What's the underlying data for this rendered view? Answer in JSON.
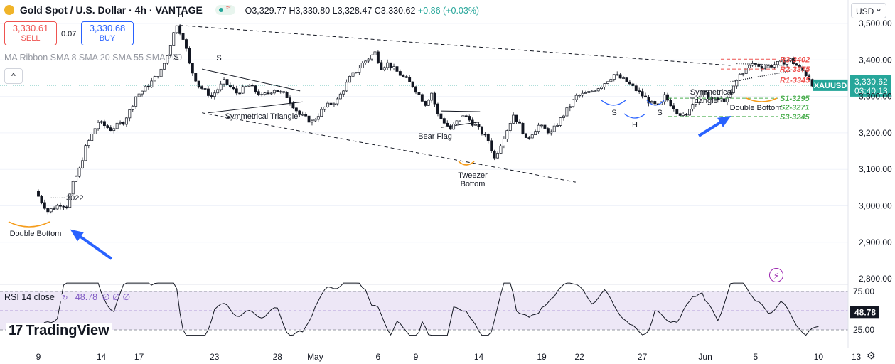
{
  "header": {
    "title": "Gold Spot / U.S. Dollar · 4h · VANTAGE",
    "open": "O3,329.77",
    "high": "H3,330.80",
    "low": "L3,328.47",
    "close": "C3,330.62",
    "change": "+0.86 (+0.03%)"
  },
  "trade": {
    "sell_price": "3,330.61",
    "sell_label": "SELL",
    "spread": "0.07",
    "buy_price": "3,330.68",
    "buy_label": "BUY"
  },
  "indicator_label": "MA Ribbon SMA 8 SMA 20 SMA 55 SMA 200",
  "currency_select": "USD",
  "brand": "TradingView",
  "rsi": {
    "label": "RSI 14 close",
    "value": "48.78",
    "zeros": "∅ ∅ ∅",
    "levels": [
      75,
      50,
      25
    ],
    "level_labels": [
      "75.00",
      "25.00"
    ],
    "badge": "48.78"
  },
  "colors": {
    "up": "#26a69a",
    "down": "#ef5350",
    "accent": "#2962ff",
    "rsi_line": "#131722",
    "rsi_band": "#ede7f6",
    "orange_arc": "#f59c1a",
    "support": "#4caf50",
    "resistance": "#ef5350"
  },
  "chart_data": {
    "type": "candlestick",
    "symbol": "XAUUSD",
    "interval": "4h",
    "y_axis": {
      "ticks": [
        2900,
        3000,
        3100,
        3200,
        3300,
        3400,
        3500
      ],
      "tick_labels": [
        "2,900.00",
        "3,000.00",
        "3,100.00",
        "3,200.00",
        "3,300.00",
        "3,400.00",
        "3,500.00"
      ],
      "partial_labels": [
        "2,800.00"
      ],
      "range": [
        2800,
        3520
      ]
    },
    "x_axis": {
      "ticks": [
        {
          "label": "9",
          "day": 0
        },
        {
          "label": "14",
          "day": 5
        },
        {
          "label": "17",
          "day": 8
        },
        {
          "label": "23",
          "day": 14
        },
        {
          "label": "28",
          "day": 19
        },
        {
          "label": "May",
          "day": 22
        },
        {
          "label": "6",
          "day": 27
        },
        {
          "label": "9",
          "day": 30
        },
        {
          "label": "14",
          "day": 35
        },
        {
          "label": "19",
          "day": 40
        },
        {
          "label": "22",
          "day": 43
        },
        {
          "label": "27",
          "day": 48
        },
        {
          "label": "Jun",
          "day": 53
        },
        {
          "label": "5",
          "day": 57
        },
        {
          "label": "10",
          "day": 62
        },
        {
          "label": "13",
          "day": 65
        }
      ]
    },
    "price_path": [
      [
        0,
        3040
      ],
      [
        1,
        2985
      ],
      [
        2,
        3005
      ],
      [
        2.5,
        3000
      ],
      [
        3,
        3060
      ],
      [
        3.5,
        3100
      ],
      [
        4,
        3160
      ],
      [
        5,
        3230
      ],
      [
        6,
        3210
      ],
      [
        7,
        3230
      ],
      [
        7.5,
        3260
      ],
      [
        8,
        3300
      ],
      [
        9,
        3330
      ],
      [
        10,
        3370
      ],
      [
        10.6,
        3420
      ],
      [
        11,
        3480
      ],
      [
        11.2,
        3495
      ],
      [
        11.8,
        3460
      ],
      [
        12.3,
        3380
      ],
      [
        13,
        3330
      ],
      [
        14,
        3300
      ],
      [
        15,
        3340
      ],
      [
        16,
        3310
      ],
      [
        17,
        3330
      ],
      [
        18,
        3300
      ],
      [
        19,
        3320
      ],
      [
        20,
        3300
      ],
      [
        21,
        3250
      ],
      [
        22,
        3230
      ],
      [
        23,
        3270
      ],
      [
        24,
        3290
      ],
      [
        25,
        3350
      ],
      [
        26,
        3390
      ],
      [
        27,
        3420
      ],
      [
        27.5,
        3380
      ],
      [
        28,
        3390
      ],
      [
        29,
        3360
      ],
      [
        30,
        3330
      ],
      [
        31,
        3280
      ],
      [
        31.5,
        3310
      ],
      [
        32,
        3250
      ],
      [
        33,
        3210
      ],
      [
        34,
        3250
      ],
      [
        35,
        3220
      ],
      [
        36,
        3180
      ],
      [
        36.5,
        3130
      ],
      [
        37,
        3170
      ],
      [
        38,
        3250
      ],
      [
        38.7,
        3210
      ],
      [
        39,
        3180
      ],
      [
        40,
        3220
      ],
      [
        41,
        3200
      ],
      [
        42,
        3250
      ],
      [
        43,
        3300
      ],
      [
        44,
        3310
      ],
      [
        45,
        3330
      ],
      [
        46,
        3360
      ],
      [
        47,
        3340
      ],
      [
        48,
        3310
      ],
      [
        49,
        3280
      ],
      [
        49.6,
        3270
      ],
      [
        50,
        3300
      ],
      [
        51,
        3260
      ],
      [
        51.7,
        3240
      ],
      [
        52,
        3270
      ],
      [
        53,
        3310
      ],
      [
        54,
        3290
      ],
      [
        55,
        3290
      ],
      [
        56,
        3360
      ],
      [
        57,
        3390
      ],
      [
        58,
        3380
      ],
      [
        59,
        3390
      ],
      [
        60,
        3400
      ],
      [
        61,
        3370
      ],
      [
        61.5,
        3350
      ],
      [
        62,
        3320
      ],
      [
        63,
        3330
      ],
      [
        64,
        3320
      ],
      [
        65,
        3330
      ]
    ],
    "last_price": "3,330.62",
    "last_price_tag": "XAUUSD",
    "countdown": "03:40:13",
    "levels": [
      {
        "label": "R3-3402",
        "value": 3402,
        "kind": "resistance"
      },
      {
        "label": "R2-3375",
        "value": 3375,
        "kind": "resistance"
      },
      {
        "label": "R1-3345",
        "value": 3345,
        "kind": "resistance"
      },
      {
        "label": "S1-3295",
        "value": 3295,
        "kind": "support"
      },
      {
        "label": "S2-3271",
        "value": 3271,
        "kind": "support"
      },
      {
        "label": "S3-3245",
        "value": 3245,
        "kind": "support"
      }
    ],
    "annotations": [
      {
        "text": "3022",
        "kind": "price"
      },
      {
        "text": "Double Bottom",
        "kind": "pattern"
      },
      {
        "text": "Symmetrical Triangle",
        "kind": "pattern"
      },
      {
        "text": "Bear Flag",
        "kind": "pattern"
      },
      {
        "text": "Tweezer Bottom",
        "kind": "pattern"
      },
      {
        "text": "Symmetrical Triangle",
        "kind": "pattern"
      },
      {
        "text": "Double Bottom",
        "kind": "pattern"
      },
      {
        "text": "S",
        "kind": "head-shoulders"
      },
      {
        "text": "H",
        "kind": "head-shoulders"
      },
      {
        "text": "S",
        "kind": "head-shoulders"
      },
      {
        "text": "S",
        "kind": "head-shoulders"
      },
      {
        "text": "H",
        "kind": "head-shoulders"
      },
      {
        "text": "S",
        "kind": "head-shoulders"
      }
    ]
  }
}
